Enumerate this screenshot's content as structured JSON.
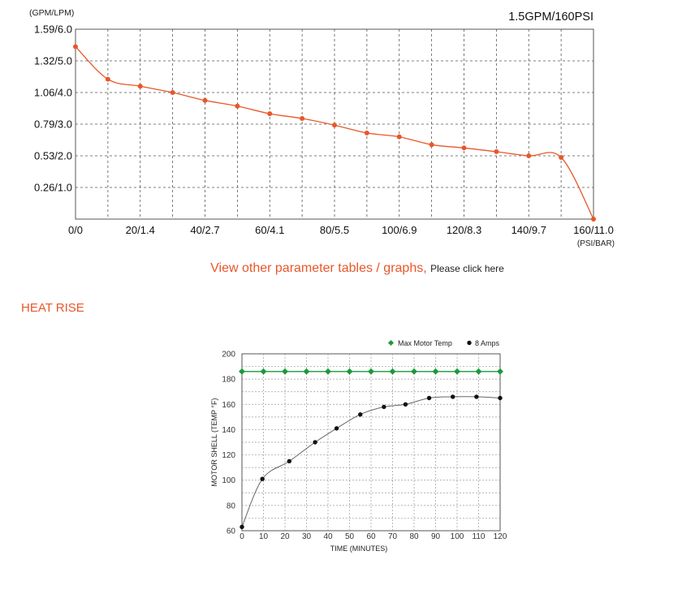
{
  "colors": {
    "flow_line": "#e8572a",
    "max_temp": "#1a9a3c",
    "amps": "#111111",
    "grid": "#555555",
    "accent_text": "#e8572a"
  },
  "link": {
    "main_text": "View other parameter tables / graphs,",
    "click_text": "Please click here"
  },
  "section": {
    "heat_rise_title": "HEAT RISE"
  },
  "chart_data": [
    {
      "type": "line",
      "title": "1.5GPM/160PSI",
      "ylabel": "(GPM/LPM)",
      "xlabel": "(PSI/BAR)",
      "xlim": [
        0,
        160
      ],
      "ylim": [
        0,
        6.0
      ],
      "grid": true,
      "y_ticks": [
        {
          "value": 1.0,
          "label": "0.26/1.0"
        },
        {
          "value": 2.0,
          "label": "0.53/2.0"
        },
        {
          "value": 3.0,
          "label": "0.79/3.0"
        },
        {
          "value": 4.0,
          "label": "1.06/4.0"
        },
        {
          "value": 5.0,
          "label": "1.32/5.0"
        },
        {
          "value": 6.0,
          "label": "1.59/6.0"
        }
      ],
      "x_ticks": [
        {
          "value": 0,
          "label": "0/0"
        },
        {
          "value": 20,
          "label": "20/1.4"
        },
        {
          "value": 40,
          "label": "40/2.7"
        },
        {
          "value": 60,
          "label": "60/4.1"
        },
        {
          "value": 80,
          "label": "80/5.5"
        },
        {
          "value": 100,
          "label": "100/6.9"
        },
        {
          "value": 120,
          "label": "120/8.3"
        },
        {
          "value": 140,
          "label": "140/9.7"
        },
        {
          "value": 160,
          "label": "160/11.0"
        }
      ],
      "series": [
        {
          "x": [
            0,
            10,
            20,
            30,
            40,
            50,
            60,
            70,
            80,
            90,
            100,
            110,
            120,
            130,
            140,
            150,
            160
          ],
          "y": [
            5.45,
            4.42,
            4.2,
            4.0,
            3.75,
            3.57,
            3.33,
            3.18,
            2.97,
            2.72,
            2.6,
            2.35,
            2.25,
            2.13,
            2.0,
            1.95,
            0.0
          ]
        }
      ]
    },
    {
      "type": "line",
      "ylabel": "MOTOR SHELL (TEMP °F)",
      "xlabel": "TIME (MINUTES)",
      "xlim": [
        0,
        120
      ],
      "ylim": [
        60,
        200
      ],
      "grid": true,
      "legend": "top-right",
      "x_ticks": [
        0,
        10,
        20,
        30,
        40,
        50,
        60,
        70,
        80,
        90,
        100,
        110,
        120
      ],
      "y_ticks": [
        60,
        80,
        100,
        120,
        140,
        160,
        180,
        200
      ],
      "series": [
        {
          "name": "Max Motor Temp",
          "x": [
            0,
            10,
            20,
            30,
            40,
            50,
            60,
            70,
            80,
            90,
            100,
            110,
            120
          ],
          "y": [
            186,
            186,
            186,
            186,
            186,
            186,
            186,
            186,
            186,
            186,
            186,
            186,
            186
          ]
        },
        {
          "name": "8 Amps",
          "x": [
            0,
            9.5,
            22,
            34,
            44,
            55,
            66,
            76,
            87,
            98,
            109,
            120
          ],
          "y": [
            63,
            101,
            115,
            130,
            141,
            152,
            158,
            160,
            165,
            166,
            166,
            165
          ]
        }
      ]
    }
  ]
}
